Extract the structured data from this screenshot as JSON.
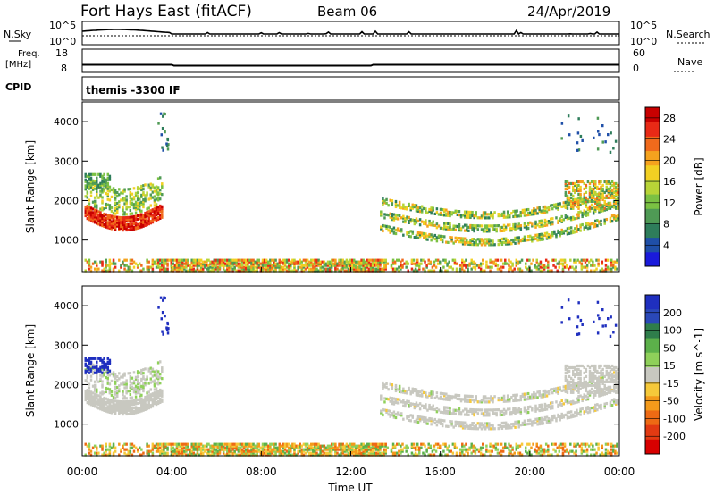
{
  "header": {
    "station": "Fort Hays East (fitACF)",
    "beam": "Beam 06",
    "date": "24/Apr/2019"
  },
  "noise_panel": {
    "left_label": "N.Sky",
    "right_label": "N.Search",
    "tick_top": "10^5",
    "tick_bottom": "10^0"
  },
  "freq_panel": {
    "left_label_1": "Freq.",
    "left_label_2": "[MHz]",
    "right_label": "Nave",
    "left_ticks": [
      "18",
      "8"
    ],
    "right_ticks": [
      "60",
      "0"
    ]
  },
  "cpid_panel": {
    "left_label": "CPID",
    "text": "themis -3300 IF"
  },
  "colors": {
    "power_scale": [
      "#1a1adb",
      "#1f4fa8",
      "#2e7d5b",
      "#4f9a55",
      "#7bc143",
      "#b8d437",
      "#f2d023",
      "#f5a21e",
      "#f06a1c",
      "#e82a16",
      "#c80000"
    ],
    "velocity_scale": [
      "#1f2fbf",
      "#2a48b8",
      "#2f7d4b",
      "#5cb04a",
      "#8fd05a",
      "#c8c8c0",
      "#f6c93a",
      "#f39a1b",
      "#ee6a14",
      "#e23a12",
      "#d80000"
    ]
  },
  "chart_data": [
    {
      "type": "heatmap",
      "name": "power",
      "ylabel": "Slant Range [km]",
      "yticks": [
        "1000",
        "2000",
        "3000",
        "4000"
      ],
      "ylim": [
        200,
        4500
      ],
      "colorbar_label": "Power [dB]",
      "colorbar_ticks": [
        "4",
        "8",
        "12",
        "16",
        "20",
        "24",
        "28"
      ],
      "colorbar_range": [
        0,
        30
      ]
    },
    {
      "type": "heatmap",
      "name": "velocity",
      "ylabel": "Slant Range [km]",
      "yticks": [
        "1000",
        "2000",
        "3000",
        "4000"
      ],
      "ylim": [
        200,
        4500
      ],
      "colorbar_label": "Velocity [m s^-1]",
      "colorbar_ticks": [
        "200",
        "100",
        "50",
        "15",
        "-15",
        "-50",
        "-100",
        "-200"
      ]
    }
  ],
  "xaxis": {
    "label": "Time UT",
    "ticks": [
      "00:00",
      "04:00",
      "08:00",
      "12:00",
      "16:00",
      "20:00",
      "00:00"
    ],
    "range_hours": [
      0,
      24
    ]
  }
}
